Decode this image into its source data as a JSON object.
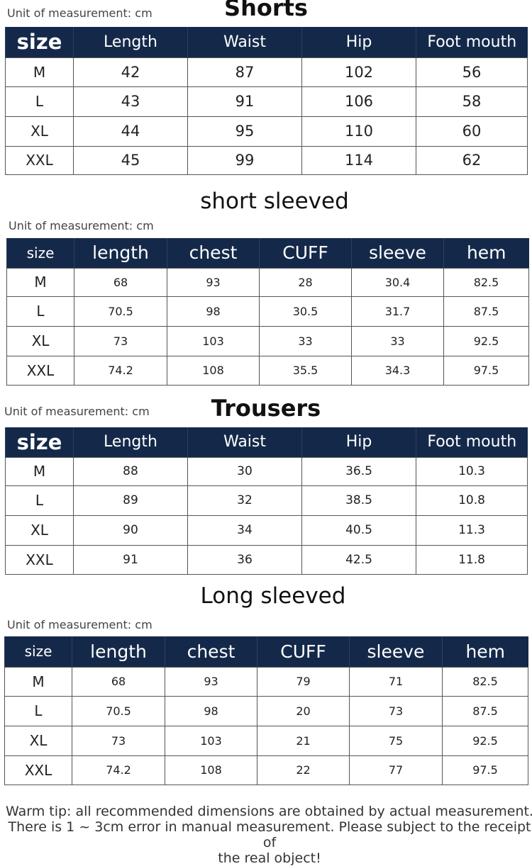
{
  "sections": [
    {
      "title": "Shorts",
      "unit": "Unit of measurement: cm",
      "headers": [
        "size",
        "Length",
        "Waist",
        "Hip",
        "Foot mouth"
      ],
      "rows": [
        [
          "M",
          "42",
          "87",
          "102",
          "56"
        ],
        [
          "L",
          "43",
          "91",
          "106",
          "58"
        ],
        [
          "XL",
          "44",
          "95",
          "110",
          "60"
        ],
        [
          "XXL",
          "45",
          "99",
          "114",
          "62"
        ]
      ]
    },
    {
      "title": "short sleeved",
      "unit": "Unit of measurement: cm",
      "headers": [
        "size",
        "length",
        "chest",
        "CUFF",
        "sleeve",
        "hem"
      ],
      "rows": [
        [
          "M",
          "68",
          "93",
          "28",
          "30.4",
          "82.5"
        ],
        [
          "L",
          "70.5",
          "98",
          "30.5",
          "31.7",
          "87.5"
        ],
        [
          "XL",
          "73",
          "103",
          "33",
          "33",
          "92.5"
        ],
        [
          "XXL",
          "74.2",
          "108",
          "35.5",
          "34.3",
          "97.5"
        ]
      ]
    },
    {
      "title": "Trousers",
      "unit": "Unit of measurement: cm",
      "headers": [
        "size",
        "Length",
        "Waist",
        "Hip",
        "Foot mouth"
      ],
      "rows": [
        [
          "M",
          "88",
          "30",
          "36.5",
          "10.3"
        ],
        [
          "L",
          "89",
          "32",
          "38.5",
          "10.8"
        ],
        [
          "XL",
          "90",
          "34",
          "40.5",
          "11.3"
        ],
        [
          "XXL",
          "91",
          "36",
          "42.5",
          "11.8"
        ]
      ]
    },
    {
      "title": "Long sleeved",
      "unit": "Unit of measurement: cm",
      "headers": [
        "size",
        "length",
        "chest",
        "CUFF",
        "sleeve",
        "hem"
      ],
      "rows": [
        [
          "M",
          "68",
          "93",
          "79",
          "71",
          "82.5"
        ],
        [
          "L",
          "70.5",
          "98",
          "20",
          "73",
          "87.5"
        ],
        [
          "XL",
          "73",
          "103",
          "21",
          "75",
          "92.5"
        ],
        [
          "XXL",
          "74.2",
          "108",
          "22",
          "77",
          "97.5"
        ]
      ]
    }
  ],
  "warm_tip": {
    "line1": "Warm tip: all recommended dimensions are obtained by actual measurement.",
    "line2": "There is 1 ~ 3cm error in manual measurement. Please subject to the receipt of",
    "line3": "the real object!"
  },
  "colors": {
    "header_bg": "#14294a",
    "header_text": "#ffffff"
  }
}
